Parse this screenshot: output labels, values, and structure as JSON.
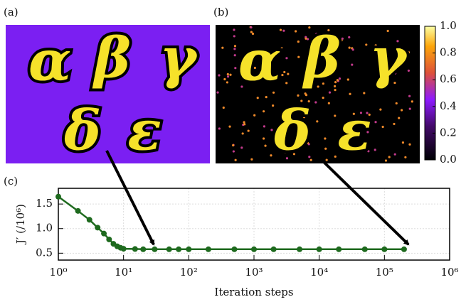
{
  "chart_data": [
    {
      "type": "image",
      "panel_label": "(a)",
      "glyphs": [
        "α",
        "β",
        "γ",
        "δ",
        "ε"
      ]
    },
    {
      "type": "heatmap-image",
      "panel_label": "(b)",
      "glyphs": [
        "α",
        "β",
        "γ",
        "δ",
        "ε"
      ],
      "clim": [
        0,
        1.0
      ],
      "cticks": [
        {
          "value": 0,
          "label": "0.0"
        },
        {
          "value": 0.2,
          "label": "0.2"
        },
        {
          "value": 0.4,
          "label": "0.4"
        },
        {
          "value": 0.6,
          "label": "0.6"
        },
        {
          "value": 0.8,
          "label": "0.8"
        },
        {
          "value": 1.0,
          "label": "1.0"
        }
      ]
    },
    {
      "type": "line",
      "panel_label": "(c)",
      "xlabel": "Iteration steps",
      "ylabel": "J′ (/10⁶)",
      "log_x": true,
      "grid": true,
      "xlim": [
        1,
        1000000
      ],
      "xticks": [
        {
          "value": 1,
          "label": "10⁰"
        },
        {
          "value": 10,
          "label": "10¹"
        },
        {
          "value": 100,
          "label": "10²"
        },
        {
          "value": 1000,
          "label": "10³"
        },
        {
          "value": 10000,
          "label": "10⁴"
        },
        {
          "value": 100000,
          "label": "10⁵"
        },
        {
          "value": 1000000,
          "label": "10⁶"
        }
      ],
      "ylim": [
        0.36,
        1.82
      ],
      "yticks": [
        {
          "value": 0.5,
          "label": "0.5"
        },
        {
          "value": 1.0,
          "label": "1.0"
        },
        {
          "value": 1.5,
          "label": "1.5"
        }
      ],
      "series": [
        {
          "color": "#1e6a1e",
          "x": [
            1,
            2,
            3,
            4,
            5,
            6,
            7,
            8,
            9,
            10,
            15,
            20,
            30,
            50,
            70,
            100,
            200,
            500,
            1000,
            2000,
            5000,
            10000,
            20000,
            50000,
            100000,
            200000
          ],
          "values": [
            1.65,
            1.36,
            1.18,
            1.02,
            0.9,
            0.78,
            0.69,
            0.64,
            0.61,
            0.59,
            0.585,
            0.58,
            0.58,
            0.58,
            0.58,
            0.58,
            0.58,
            0.58,
            0.58,
            0.58,
            0.58,
            0.58,
            0.58,
            0.58,
            0.58,
            0.58
          ]
        }
      ]
    }
  ]
}
